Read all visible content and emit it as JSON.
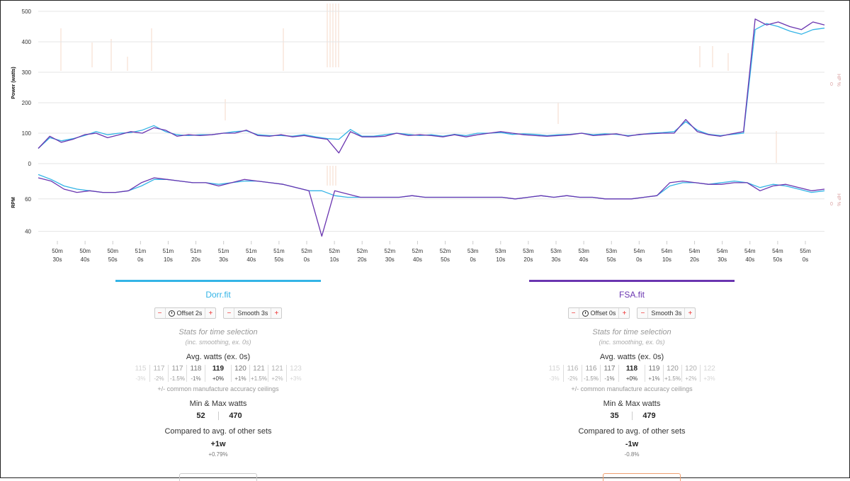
{
  "chart_data": {
    "type": "line",
    "power_panel": {
      "ylabel": "Power (watts)",
      "right_label": "HP %",
      "right_tick": "0",
      "yticks": [
        0,
        100,
        200,
        300,
        400,
        500
      ],
      "ylim": [
        0,
        500
      ],
      "series": [
        {
          "name": "Dorr.fit",
          "color": "#33b4e6",
          "values": [
            50,
            85,
            75,
            82,
            92,
            105,
            95,
            100,
            102,
            110,
            125,
            105,
            95,
            92,
            95,
            95,
            100,
            105,
            108,
            95,
            92,
            92,
            90,
            95,
            88,
            82,
            80,
            112,
            90,
            90,
            95,
            100,
            96,
            92,
            95,
            90,
            96,
            92,
            100,
            100,
            102,
            96,
            98,
            96,
            92,
            95,
            96,
            100,
            95,
            98,
            96,
            92,
            95,
            100,
            102,
            105,
            138,
            110,
            96,
            92,
            96,
            100,
            440,
            460,
            450,
            435,
            425,
            440,
            445
          ]
        },
        {
          "name": "FSA.fit",
          "color": "#6a35b0",
          "values": [
            50,
            90,
            70,
            80,
            95,
            100,
            85,
            95,
            105,
            100,
            118,
            110,
            90,
            95,
            92,
            95,
            100,
            100,
            110,
            92,
            90,
            95,
            88,
            92,
            85,
            80,
            35,
            105,
            88,
            88,
            90,
            100,
            92,
            95,
            92,
            88,
            95,
            88,
            95,
            100,
            105,
            100,
            95,
            92,
            90,
            92,
            95,
            100,
            92,
            95,
            98,
            90,
            96,
            98,
            100,
            100,
            145,
            105,
            95,
            90,
            98,
            105,
            475,
            455,
            465,
            450,
            440,
            465,
            455
          ]
        }
      ]
    },
    "rpm_panel": {
      "ylabel": "RPM",
      "right_label": "HP %",
      "right_tick": "0",
      "yticks": [
        40,
        60
      ],
      "ylim": [
        35,
        80
      ],
      "series": [
        {
          "name": "Dorr.fit",
          "color": "#33b4e6",
          "values": [
            75,
            72,
            68,
            66,
            65,
            64,
            64,
            65,
            68,
            72,
            72,
            71,
            70,
            70,
            69,
            70,
            71,
            71,
            70,
            69,
            67,
            65,
            65,
            62,
            61,
            61,
            61,
            61,
            61,
            62,
            61,
            61,
            61,
            61,
            61,
            61,
            61,
            60,
            61,
            62,
            61,
            62,
            61,
            61,
            60,
            60,
            60,
            61,
            62,
            68,
            70,
            70,
            69,
            70,
            71,
            70,
            67,
            69,
            68,
            66,
            64,
            65
          ]
        },
        {
          "name": "FSA.fit",
          "color": "#6a35b0",
          "values": [
            73,
            71,
            66,
            64,
            65,
            64,
            64,
            65,
            70,
            73,
            72,
            71,
            70,
            70,
            68,
            70,
            72,
            71,
            70,
            69,
            67,
            65,
            37,
            65,
            63,
            61,
            61,
            61,
            61,
            62,
            61,
            61,
            61,
            61,
            61,
            61,
            61,
            60,
            61,
            62,
            61,
            62,
            61,
            61,
            60,
            60,
            60,
            61,
            62,
            70,
            71,
            70,
            69,
            69,
            70,
            70,
            65,
            68,
            69,
            67,
            65,
            66
          ]
        }
      ]
    },
    "x_ticks": [
      [
        "50m",
        "30s"
      ],
      [
        "50m",
        "40s"
      ],
      [
        "50m",
        "50s"
      ],
      [
        "51m",
        "0s"
      ],
      [
        "51m",
        "10s"
      ],
      [
        "51m",
        "20s"
      ],
      [
        "51m",
        "30s"
      ],
      [
        "51m",
        "40s"
      ],
      [
        "51m",
        "50s"
      ],
      [
        "52m",
        "0s"
      ],
      [
        "52m",
        "10s"
      ],
      [
        "52m",
        "20s"
      ],
      [
        "52m",
        "30s"
      ],
      [
        "52m",
        "40s"
      ],
      [
        "52m",
        "50s"
      ],
      [
        "53m",
        "0s"
      ],
      [
        "53m",
        "10s"
      ],
      [
        "53m",
        "20s"
      ],
      [
        "53m",
        "30s"
      ],
      [
        "53m",
        "40s"
      ],
      [
        "53m",
        "50s"
      ],
      [
        "54m",
        "0s"
      ],
      [
        "54m",
        "10s"
      ],
      [
        "54m",
        "20s"
      ],
      [
        "54m",
        "30s"
      ],
      [
        "54m",
        "40s"
      ],
      [
        "54m",
        "50s"
      ],
      [
        "55m",
        "0s"
      ]
    ],
    "grid": true,
    "legend": "none"
  },
  "panels": [
    {
      "file": "Dorr.fit",
      "color": "#33b4e6",
      "offset_label": "Offset 2s",
      "smooth_label": "Smooth 3s",
      "stats_title": "Stats for time selection",
      "stats_sub": "(inc. smoothing, ex. 0s)",
      "avg_title": "Avg. watts (ex. 0s)",
      "avg_cells": [
        {
          "w": "115",
          "p": "-3%"
        },
        {
          "w": "117",
          "p": "-2%"
        },
        {
          "w": "117",
          "p": "-1.5%"
        },
        {
          "w": "118",
          "p": "-1%"
        },
        {
          "w": "119",
          "p": "+0%"
        },
        {
          "w": "120",
          "p": "+1%"
        },
        {
          "w": "121",
          "p": "+1.5%"
        },
        {
          "w": "121",
          "p": "+2%"
        },
        {
          "w": "123",
          "p": "+3%"
        }
      ],
      "accuracy_note": "+/- common manufacture accuracy ceilings",
      "minmax_title": "Min & Max watts",
      "min": "52",
      "max": "470",
      "compare_title": "Compared to avg. of other sets",
      "compare_value": "+1w",
      "compare_pct": "+0.79%"
    },
    {
      "file": "FSA.fit",
      "color": "#6a35b0",
      "offset_label": "Offset 0s",
      "smooth_label": "Smooth 3s",
      "stats_title": "Stats for time selection",
      "stats_sub": "(inc. smoothing, ex. 0s)",
      "avg_title": "Avg. watts (ex. 0s)",
      "avg_cells": [
        {
          "w": "115",
          "p": "-3%"
        },
        {
          "w": "116",
          "p": "-2%"
        },
        {
          "w": "116",
          "p": "-1.5%"
        },
        {
          "w": "117",
          "p": "-1%"
        },
        {
          "w": "118",
          "p": "+0%"
        },
        {
          "w": "119",
          "p": "+1%"
        },
        {
          "w": "120",
          "p": "+1.5%"
        },
        {
          "w": "120",
          "p": "+2%"
        },
        {
          "w": "122",
          "p": "+3%"
        }
      ],
      "accuracy_note": "+/- common manufacture accuracy ceilings",
      "minmax_title": "Min & Max watts",
      "min": "35",
      "max": "479",
      "compare_title": "Compared to avg. of other sets",
      "compare_value": "-1w",
      "compare_pct": "-0.8%"
    }
  ],
  "icons": {
    "offset": "clock-icon",
    "minus": "minus-icon",
    "plus": "plus-icon"
  }
}
